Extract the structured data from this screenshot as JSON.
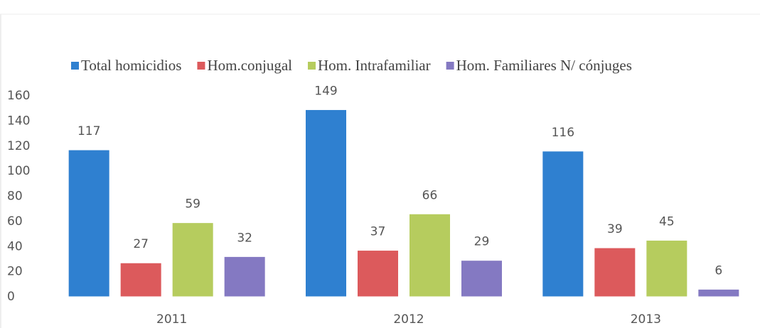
{
  "chart_data": {
    "type": "bar",
    "categories": [
      "2011",
      "2012",
      "2013"
    ],
    "series": [
      {
        "name": "Total homicidios",
        "color": "#2f80d0",
        "values": [
          117,
          149,
          116
        ]
      },
      {
        "name": "Hom.conjugal",
        "color": "#dc5a5c",
        "values": [
          27,
          37,
          39
        ]
      },
      {
        "name": "Hom. Intrafamiliar",
        "color": "#b6cc5e",
        "values": [
          59,
          66,
          45
        ]
      },
      {
        "name": "Hom. Familiares N/ cónjuges",
        "color": "#8479c2",
        "values": [
          32,
          29,
          6
        ]
      }
    ],
    "ylim": [
      0,
      160
    ],
    "yticks": [
      0,
      20,
      40,
      60,
      80,
      100,
      120,
      140,
      160
    ],
    "legend": "top"
  }
}
